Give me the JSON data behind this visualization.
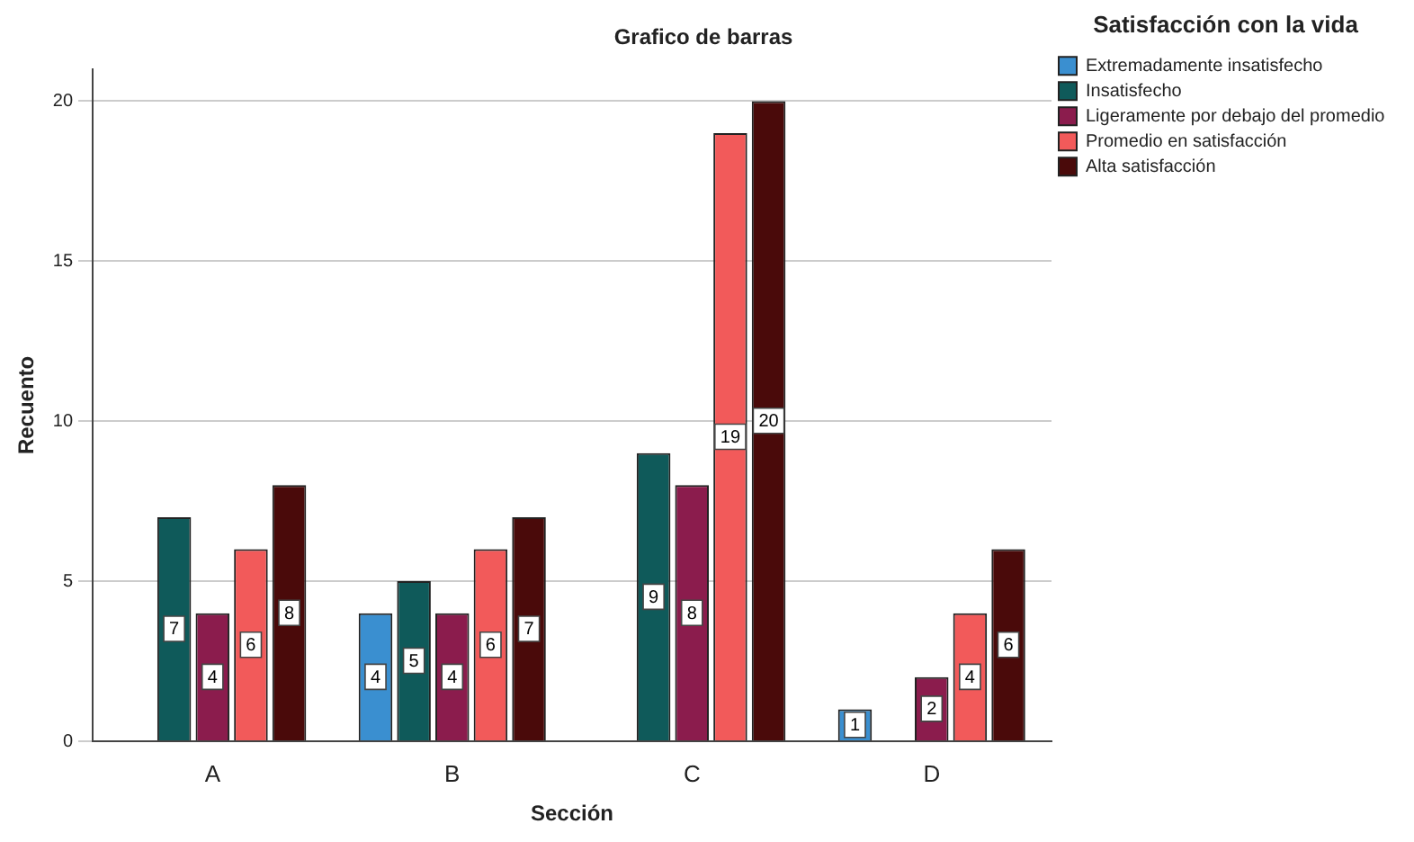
{
  "chart_data": {
    "type": "bar",
    "title": "Grafico de barras",
    "xlabel": "Sección",
    "ylabel": "Recuento",
    "legend_title": "Satisfacción con la vida",
    "legend": "right",
    "grid": "y",
    "data_labels": true,
    "categories": [
      "A",
      "B",
      "C",
      "D"
    ],
    "ylim": [
      0,
      21
    ],
    "yticks": [
      0,
      5,
      10,
      15,
      20
    ],
    "series": [
      {
        "name": "Extremadamente insatisfecho",
        "color": "#3a8fd0",
        "values": [
          null,
          4,
          null,
          1
        ]
      },
      {
        "name": "Insatisfecho",
        "color": "#0f5a5a",
        "values": [
          7,
          5,
          9,
          null
        ]
      },
      {
        "name": "Ligeramente por debajo del promedio",
        "color": "#8b1c4d",
        "values": [
          4,
          4,
          8,
          2
        ]
      },
      {
        "name": "Promedio en satisfacción",
        "color": "#f25a5a",
        "values": [
          6,
          6,
          19,
          4
        ]
      },
      {
        "name": "Alta satisfacción",
        "color": "#4a0a0a",
        "values": [
          8,
          7,
          20,
          6
        ]
      }
    ]
  }
}
